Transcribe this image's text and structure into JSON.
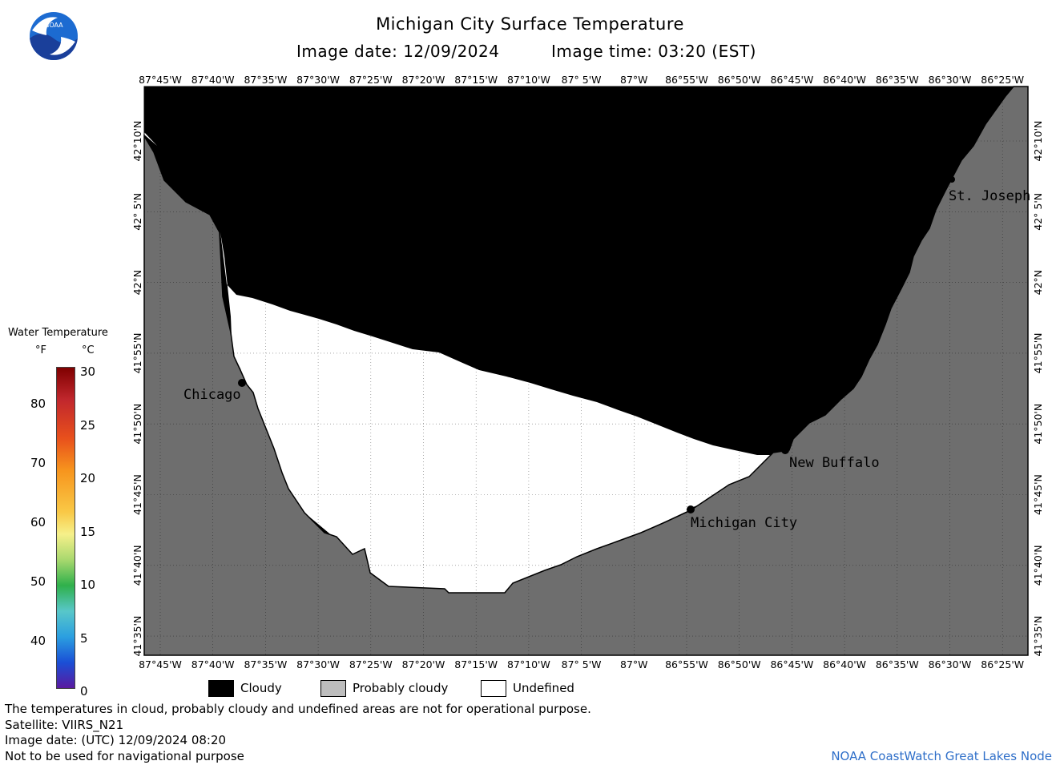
{
  "title": "Michigan City Surface Temperature",
  "image_date": "Image date: 12/09/2024",
  "image_time": "Image time: 03:20 (EST)",
  "logo_text": "NOAA",
  "lon_labels": [
    "87°45'W",
    "87°40'W",
    "87°35'W",
    "87°30'W",
    "87°25'W",
    "87°20'W",
    "87°15'W",
    "87°10'W",
    "87° 5'W",
    "87°W",
    "86°55'W",
    "86°50'W",
    "86°45'W",
    "86°40'W",
    "86°35'W",
    "86°30'W",
    "86°25'W"
  ],
  "lat_labels": [
    "42°10'N",
    "42° 5'N",
    "42°N",
    "41°55'N",
    "41°50'N",
    "41°45'N",
    "41°40'N",
    "41°35'N"
  ],
  "cities": [
    {
      "name": "Chicago"
    },
    {
      "name": "Michigan City"
    },
    {
      "name": "New Buffalo"
    },
    {
      "name": "St. Joseph"
    }
  ],
  "colorbar": {
    "title": "Water Temperature",
    "unit_f": "°F",
    "unit_c": "°C",
    "f_ticks": [
      "80",
      "70",
      "60",
      "50",
      "40"
    ],
    "c_ticks": [
      "30",
      "25",
      "20",
      "15",
      "10",
      "5",
      "0"
    ]
  },
  "legend": {
    "cloudy": "Cloudy",
    "probably_cloudy": "Probably cloudy",
    "undefined": "Undefined",
    "cloudy_color": "#000000",
    "probably_cloudy_color": "#bdbdbd",
    "undefined_color": "#ffffff",
    "land_color": "#6e6e6e"
  },
  "footer": {
    "line1": "The temperatures in cloud, probably cloudy and undefined areas are not for operational purpose.",
    "line2": "Satellite: VIIRS_N21",
    "line3": "Image date: (UTC) 12/09/2024  08:20",
    "line4": "Not to be used for navigational purpose",
    "credit": "NOAA CoastWatch Great Lakes Node"
  }
}
